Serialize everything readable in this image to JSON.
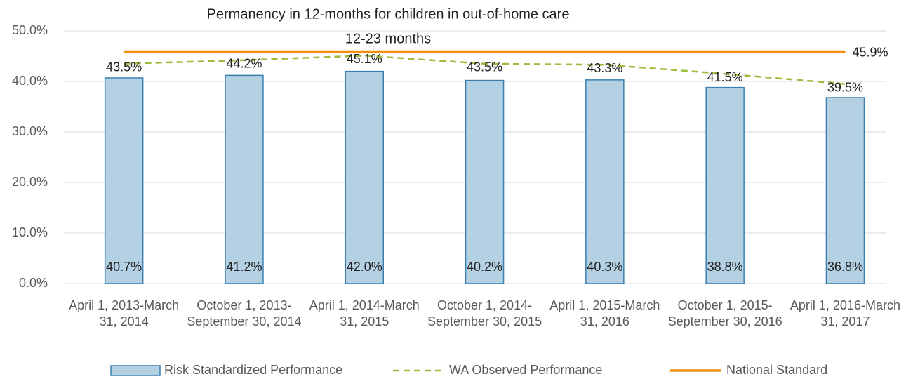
{
  "chart_data": {
    "type": "bar_line",
    "title": "Permanency in 12-months for children in out-of-home care",
    "subtitle": "12-23 months",
    "categories": [
      "April 1, 2013-March 31, 2014",
      "October 1, 2013-September 30, 2014",
      "April 1, 2014-March 31, 2015",
      "October 1, 2014-September 30, 2015",
      "April 1, 2015-March 31, 2016",
      "October 1, 2015-September 30, 2016",
      "April 1, 2016-March 31, 2017"
    ],
    "series": [
      {
        "name": "Risk Standardized Performance",
        "type": "bar",
        "color": "#b4d0e3",
        "values": [
          40.7,
          41.2,
          42.0,
          40.2,
          40.3,
          38.8,
          36.8
        ],
        "value_labels": [
          "40.7%",
          "41.2%",
          "42.0%",
          "40.2%",
          "40.3%",
          "38.8%",
          "36.8%"
        ]
      },
      {
        "name": "WA Observed Performance",
        "type": "line",
        "color": "#9cbb3c",
        "values": [
          43.5,
          44.2,
          45.1,
          43.5,
          43.3,
          41.5,
          39.5
        ],
        "value_labels": [
          "43.5%",
          "44.2%",
          "45.1%",
          "43.5%",
          "43.3%",
          "41.5%",
          "39.5%"
        ]
      }
    ],
    "reference_line": {
      "name": "National Standard",
      "color": "#f0900a",
      "value": 45.9,
      "value_label": "45.9%"
    },
    "ylim": [
      0,
      50
    ],
    "yticks": [
      {
        "value": 0,
        "label": "0.0%"
      },
      {
        "value": 10,
        "label": "10.0%"
      },
      {
        "value": 20,
        "label": "20.0%"
      },
      {
        "value": 30,
        "label": "30.0%"
      },
      {
        "value": 40,
        "label": "40.0%"
      },
      {
        "value": 50,
        "label": "50.0%"
      }
    ],
    "grid": true,
    "legend": "bottom"
  }
}
